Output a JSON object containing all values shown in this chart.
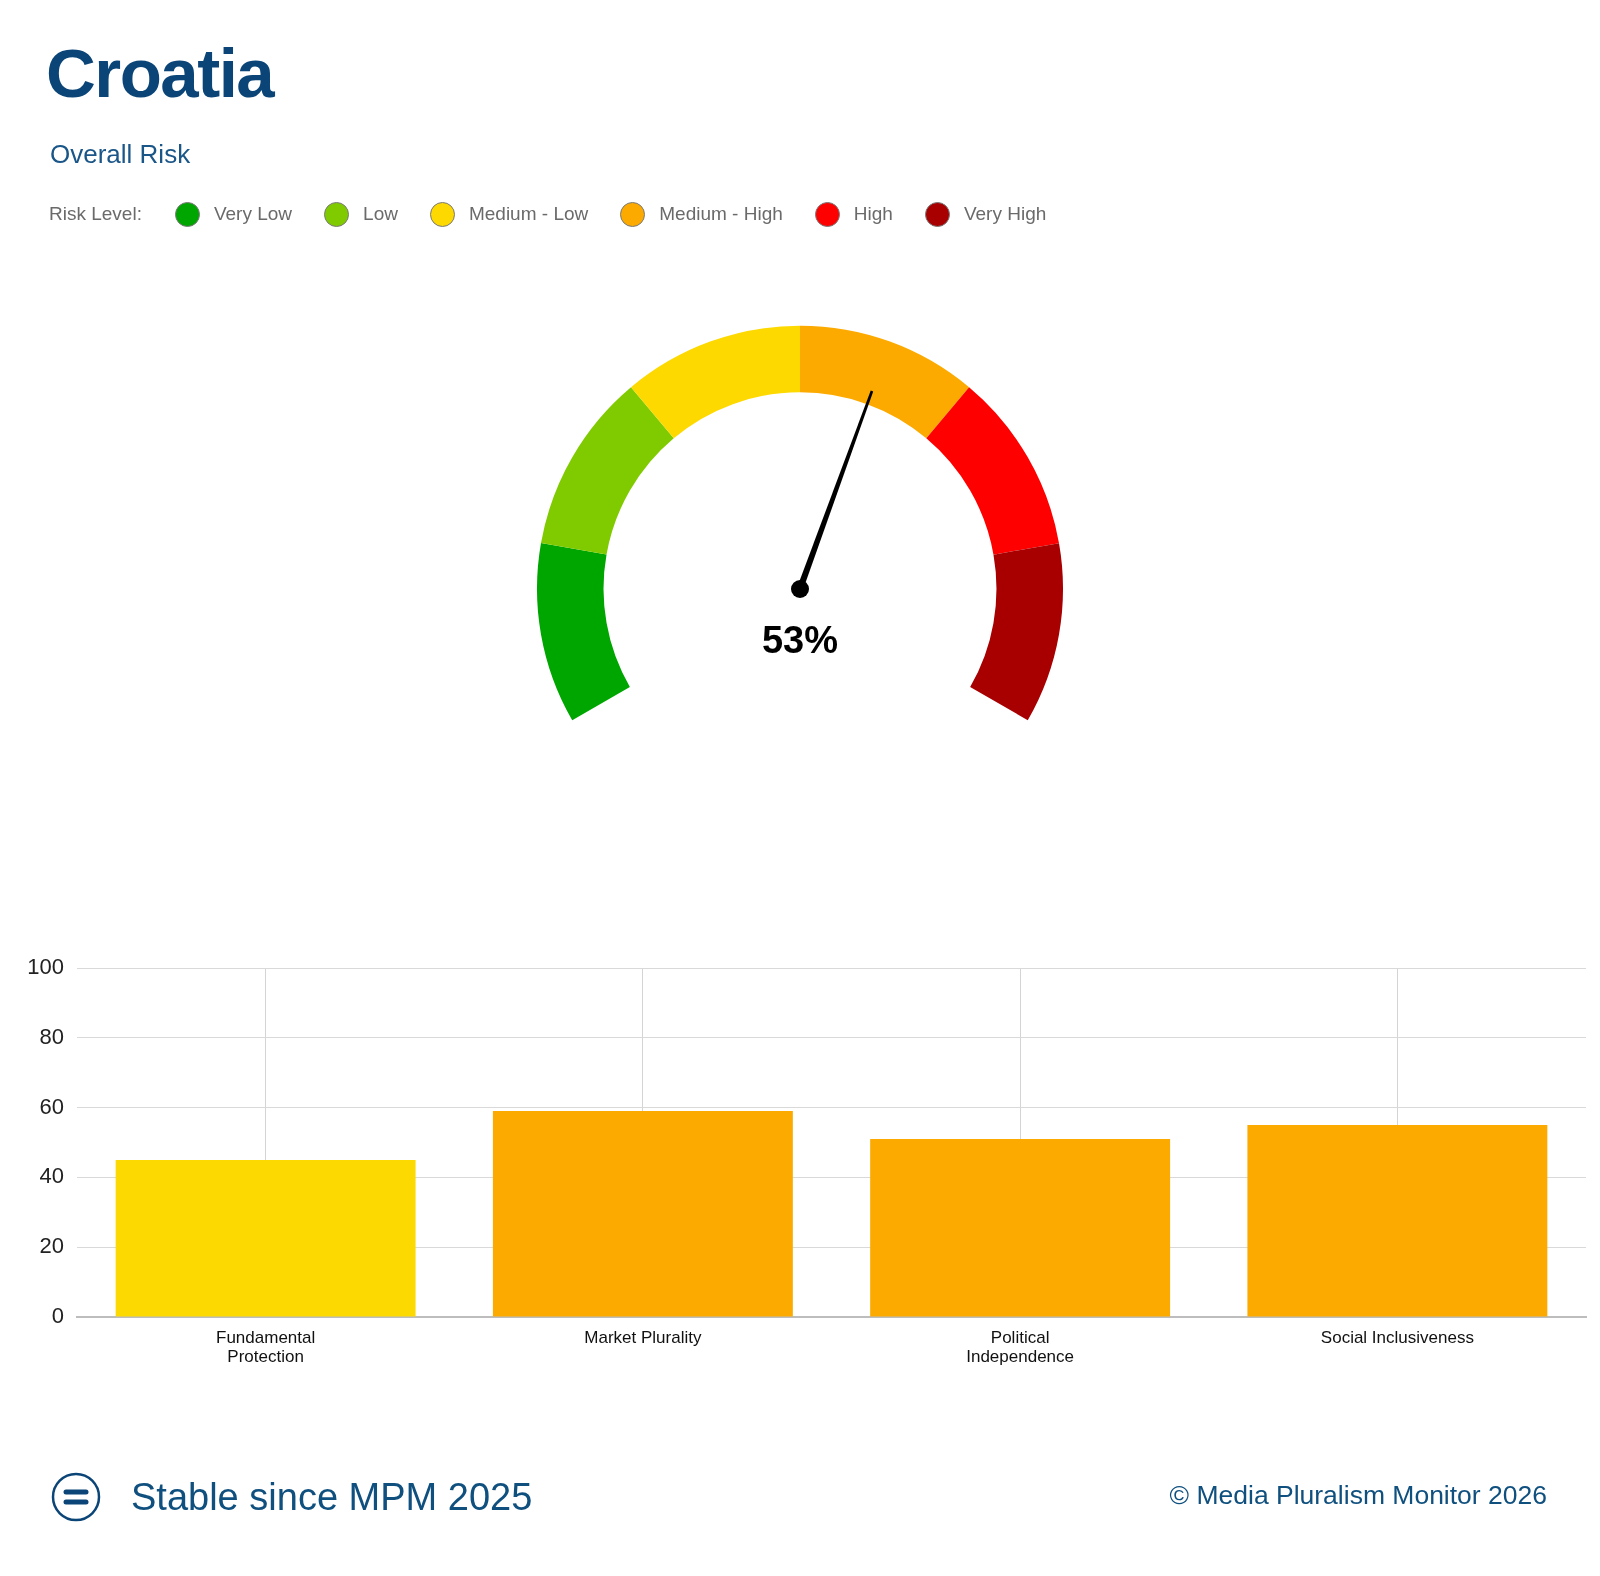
{
  "chart_data": [
    {
      "type": "donut",
      "title": "Croatia",
      "subtitle": "Overall Risk",
      "legend_title": "Risk Level:",
      "legend": "top",
      "categories": [
        "Very Low",
        "Low",
        "Medium - Low",
        "Medium - High",
        "High",
        "Very High"
      ],
      "values": [
        16.67,
        16.67,
        16.66,
        16.67,
        16.67,
        16.66
      ],
      "colors": [
        "#00a600",
        "#80cb00",
        "#fdd900",
        "#fcaa00",
        "#fe0000",
        "#a80000"
      ],
      "needle": "Medium - High",
      "annotations": [
        "53%"
      ]
    },
    {
      "type": "bar",
      "categories": [
        "Fundamental Protection",
        "Market Plurality",
        "Political Independence",
        "Social Inclusiveness"
      ],
      "values": [
        45,
        59,
        51,
        55
      ],
      "colors": [
        "#fcd900",
        "#fcaa00",
        "#fcaa00",
        "#fcaa00"
      ],
      "ylim": [
        0,
        100
      ],
      "yticks": [
        0,
        20,
        40,
        60,
        80,
        100
      ],
      "grid": true,
      "annotations": [
        "Stable since MPM 2025",
        "© Media Pluralism Monitor 2026"
      ]
    }
  ]
}
